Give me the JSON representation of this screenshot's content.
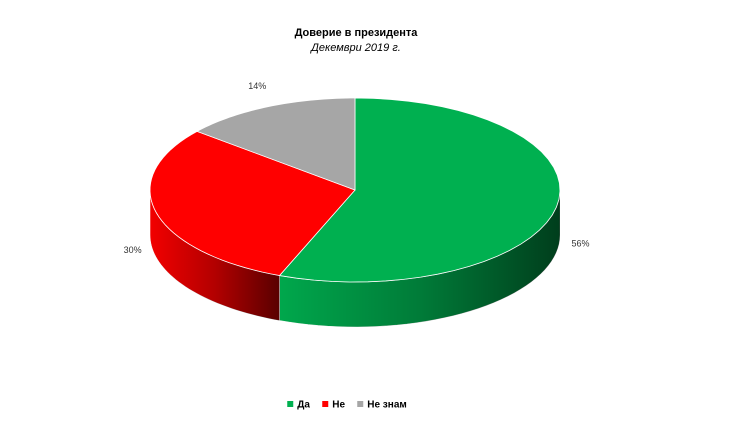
{
  "chart_data": {
    "type": "pie3d",
    "title": "Доверие в президента",
    "subtitle": "Декември 2019 г.",
    "categories": [
      "Да",
      "Не",
      "Не знам"
    ],
    "values": [
      56,
      30,
      14
    ],
    "value_labels": [
      "56%",
      "30%",
      "14%"
    ],
    "colors": [
      "#00b050",
      "#ff0000",
      "#a6a6a6"
    ],
    "legend": "bottom"
  }
}
